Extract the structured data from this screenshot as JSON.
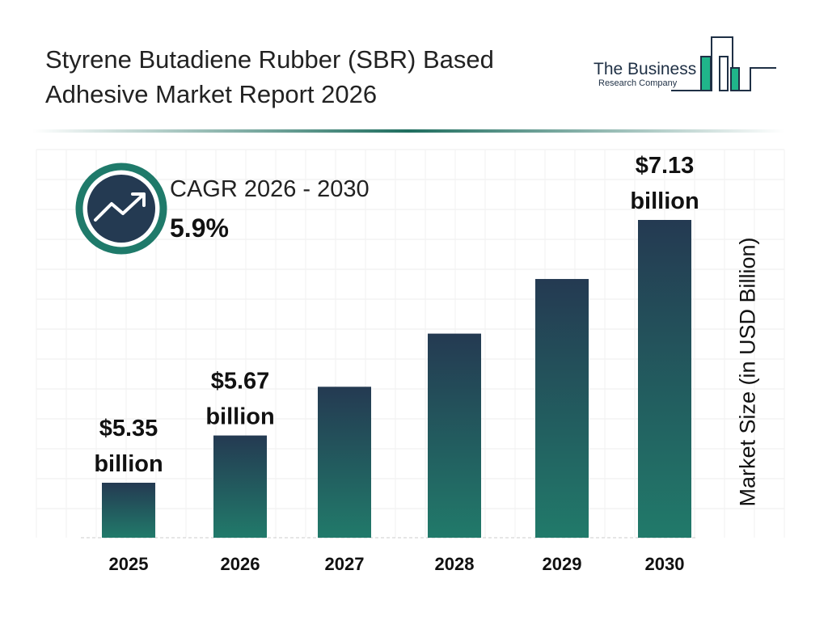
{
  "title": "Styrene Butadiene Rubber (SBR) Based Adhesive Market Report 2026",
  "logo": {
    "line1": "The Business",
    "line2": "Research Company"
  },
  "cagr": {
    "label": "CAGR 2026 - 2030",
    "value": "5.9%",
    "icon": "trending-up-icon"
  },
  "colors": {
    "bar_top": "#243a52",
    "bar_bottom": "#217a6a",
    "accent": "#1f7a6a"
  },
  "chart_data": {
    "type": "bar",
    "categories": [
      "2025",
      "2026",
      "2027",
      "2028",
      "2029",
      "2030"
    ],
    "values": [
      5.35,
      5.67,
      6.0,
      6.36,
      6.73,
      7.13
    ],
    "data_labels": [
      [
        "$5.35",
        "billion"
      ],
      [
        "$5.67",
        "billion"
      ],
      null,
      null,
      null,
      [
        "$7.13",
        "billion"
      ]
    ],
    "xlabel": "",
    "ylabel": "Market Size (in USD Billion)",
    "grid": true
  }
}
